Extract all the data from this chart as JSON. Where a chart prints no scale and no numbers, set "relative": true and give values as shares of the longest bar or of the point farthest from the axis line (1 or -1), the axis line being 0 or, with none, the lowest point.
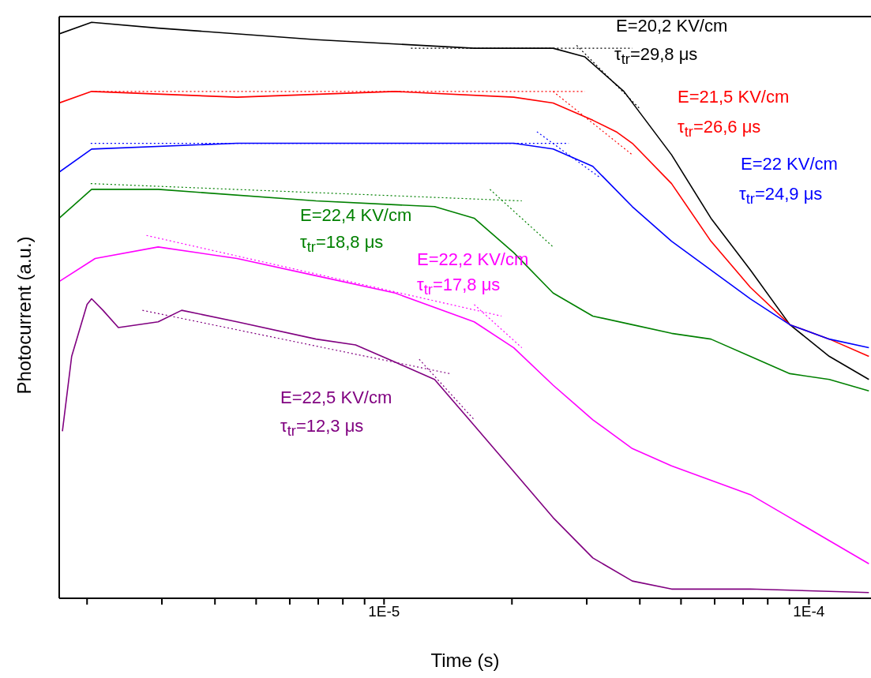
{
  "chart_data": {
    "type": "line",
    "relative": true,
    "log": "x",
    "xlabel": "Time (s)",
    "ylabel": "Photocurrent (a.u.)",
    "xlim": [
      1.72e-06,
      0.00014
    ],
    "xticks": [
      {
        "value": 2e-06,
        "label": null
      },
      {
        "value": 3e-06,
        "label": null
      },
      {
        "value": 4e-06,
        "label": null
      },
      {
        "value": 5e-06,
        "label": null
      },
      {
        "value": 6e-06,
        "label": null
      },
      {
        "value": 7e-06,
        "label": null
      },
      {
        "value": 8e-06,
        "label": null
      },
      {
        "value": 9e-06,
        "label": null
      },
      {
        "value": 1e-05,
        "label": "1E-5"
      },
      {
        "value": 2e-05,
        "label": null
      },
      {
        "value": 3e-05,
        "label": null
      },
      {
        "value": 4e-05,
        "label": null
      },
      {
        "value": 5e-05,
        "label": null
      },
      {
        "value": 6e-05,
        "label": null
      },
      {
        "value": 7e-05,
        "label": null
      },
      {
        "value": 8e-05,
        "label": null
      },
      {
        "value": 9e-05,
        "label": null
      },
      {
        "value": 0.0001,
        "label": "1E-4"
      }
    ],
    "marker": "none",
    "line_style": "solid",
    "annotations": [
      "E=20,2 KV/cm",
      "τ$_{tr}$=29,8 μs",
      "E=21,5 KV/cm",
      "τ$_{tr}$=26,6 μs",
      "E=22 KV/cm",
      "τ$_{tr}$=24,9 μs",
      "E=22,4 KV/cm",
      "τ$_{tr}$=18,8 μs",
      "E=22,2 KV/cm",
      "τ$_{tr}$=17,8 μs",
      "E=22,5 KV/cm",
      "τ$_{tr}$=12,3 μs"
    ],
    "series": [
      {
        "color": "#000000",
        "x": [
          1.72e-06,
          2.05e-06,
          2.94e-06,
          6.92e-06,
          1.63e-05,
          2.5e-05,
          2.97e-05,
          3.67e-05,
          4.75e-05,
          5.88e-05,
          7.28e-05,
          9.02e-05,
          0.0001117,
          0.0001384
        ],
        "values": [
          0.98,
          1.0,
          0.99,
          0.97,
          0.955,
          0.955,
          0.94,
          0.88,
          0.77,
          0.66,
          0.57,
          0.475,
          0.42,
          0.38
        ]
      },
      {
        "color": "#ff0000",
        "x": [
          1.72e-06,
          2.05e-06,
          4.51e-06,
          1.062e-05,
          2.02e-05,
          2.5e-05,
          3.1e-05,
          3.52e-05,
          3.84e-05,
          4.75e-05,
          5.88e-05,
          7.28e-05,
          9.02e-05,
          0.0001117,
          0.0001384
        ],
        "values": [
          0.86,
          0.88,
          0.87,
          0.88,
          0.87,
          0.86,
          0.83,
          0.81,
          0.79,
          0.72,
          0.62,
          0.54,
          0.475,
          0.45,
          0.42
        ]
      },
      {
        "color": "#0000ff",
        "x": [
          1.72e-06,
          2.05e-06,
          4.51e-06,
          1.062e-05,
          2.02e-05,
          2.5e-05,
          3.1e-05,
          3.84e-05,
          4.75e-05,
          5.88e-05,
          7.28e-05,
          9.02e-05,
          0.0001117,
          0.0001384
        ],
        "values": [
          0.74,
          0.78,
          0.79,
          0.79,
          0.79,
          0.78,
          0.75,
          0.68,
          0.62,
          0.57,
          0.52,
          0.475,
          0.45,
          0.435
        ]
      },
      {
        "color": "#008000",
        "x": [
          1.72e-06,
          2.05e-06,
          2.94e-06,
          6.92e-06,
          1.315e-05,
          1.63e-05,
          2.02e-05,
          2.5e-05,
          3.1e-05,
          3.84e-05,
          4.75e-05,
          5.88e-05,
          7.28e-05,
          9.02e-05,
          0.0001117,
          0.0001384
        ],
        "values": [
          0.66,
          0.71,
          0.71,
          0.69,
          0.68,
          0.66,
          0.6,
          0.53,
          0.49,
          0.475,
          0.46,
          0.45,
          0.42,
          0.39,
          0.38,
          0.36
        ]
      },
      {
        "color": "#ff00ff",
        "x": [
          1.72e-06,
          2.09e-06,
          2.94e-06,
          4.51e-06,
          6.92e-06,
          1.062e-05,
          1.63e-05,
          2.02e-05,
          2.5e-05,
          3.1e-05,
          3.84e-05,
          4.75e-05,
          5.88e-05,
          7.28e-05,
          9.02e-05,
          0.0001117,
          0.0001384
        ],
        "values": [
          0.55,
          0.59,
          0.61,
          0.59,
          0.56,
          0.53,
          0.48,
          0.435,
          0.37,
          0.31,
          0.26,
          0.23,
          0.205,
          0.18,
          0.14,
          0.1,
          0.06
        ]
      },
      {
        "color": "#800080",
        "x": [
          1.75e-06,
          1.84e-06,
          2e-06,
          2.05e-06,
          2.18e-06,
          2.37e-06,
          2.94e-06,
          3.34e-06,
          4.51e-06,
          6.92e-06,
          8.57e-06,
          1.062e-05,
          1.315e-05,
          1.63e-05,
          2.02e-05,
          2.5e-05,
          3.1e-05,
          3.84e-05,
          4.75e-05,
          7.28e-05,
          0.0001384
        ],
        "values": [
          0.29,
          0.42,
          0.51,
          0.52,
          0.5,
          0.47,
          0.48,
          0.5,
          0.48,
          0.45,
          0.44,
          0.41,
          0.38,
          0.3,
          0.22,
          0.14,
          0.07,
          0.03,
          0.016,
          0.016,
          0.01
        ]
      },
      {
        "color": "#000000",
        "line_style": "dotted",
        "x": [
          1.157e-05,
          3.84e-05
        ],
        "values": [
          0.955,
          0.955
        ]
      },
      {
        "color": "#000000",
        "line_style": "dotted",
        "x": [
          2.84e-05,
          4e-05
        ],
        "values": [
          0.96,
          0.85
        ]
      },
      {
        "color": "#ff0000",
        "line_style": "dotted",
        "x": [
          2.09e-06,
          2.97e-05
        ],
        "values": [
          0.88,
          0.88
        ]
      },
      {
        "color": "#ff0000",
        "line_style": "dotted",
        "x": [
          2.5e-05,
          3.84e-05
        ],
        "values": [
          0.88,
          0.77
        ]
      },
      {
        "color": "#0000ff",
        "line_style": "dotted",
        "x": [
          2.04e-06,
          2.72e-05
        ],
        "values": [
          0.79,
          0.79
        ]
      },
      {
        "color": "#0000ff",
        "line_style": "dotted",
        "x": [
          2.29e-05,
          3.23e-05
        ],
        "values": [
          0.81,
          0.73
        ]
      },
      {
        "color": "#008000",
        "line_style": "dotted",
        "x": [
          2.04e-06,
          2.11e-05
        ],
        "values": [
          0.72,
          0.69
        ]
      },
      {
        "color": "#008000",
        "line_style": "dotted",
        "x": [
          1.775e-05,
          2.5e-05
        ],
        "values": [
          0.71,
          0.61
        ]
      },
      {
        "color": "#ff00ff",
        "line_style": "dotted",
        "x": [
          2.76e-06,
          1.89e-05
        ],
        "values": [
          0.63,
          0.49
        ]
      },
      {
        "color": "#ff00ff",
        "line_style": "dotted",
        "x": [
          1.63e-05,
          2.11e-05
        ],
        "values": [
          0.51,
          0.435
        ]
      },
      {
        "color": "#800080",
        "line_style": "dotted",
        "x": [
          2.7e-06,
          1.43e-05
        ],
        "values": [
          0.5,
          0.39
        ]
      },
      {
        "color": "#800080",
        "line_style": "dotted",
        "x": [
          1.21e-05,
          1.63e-05
        ],
        "values": [
          0.415,
          0.31
        ]
      }
    ]
  }
}
